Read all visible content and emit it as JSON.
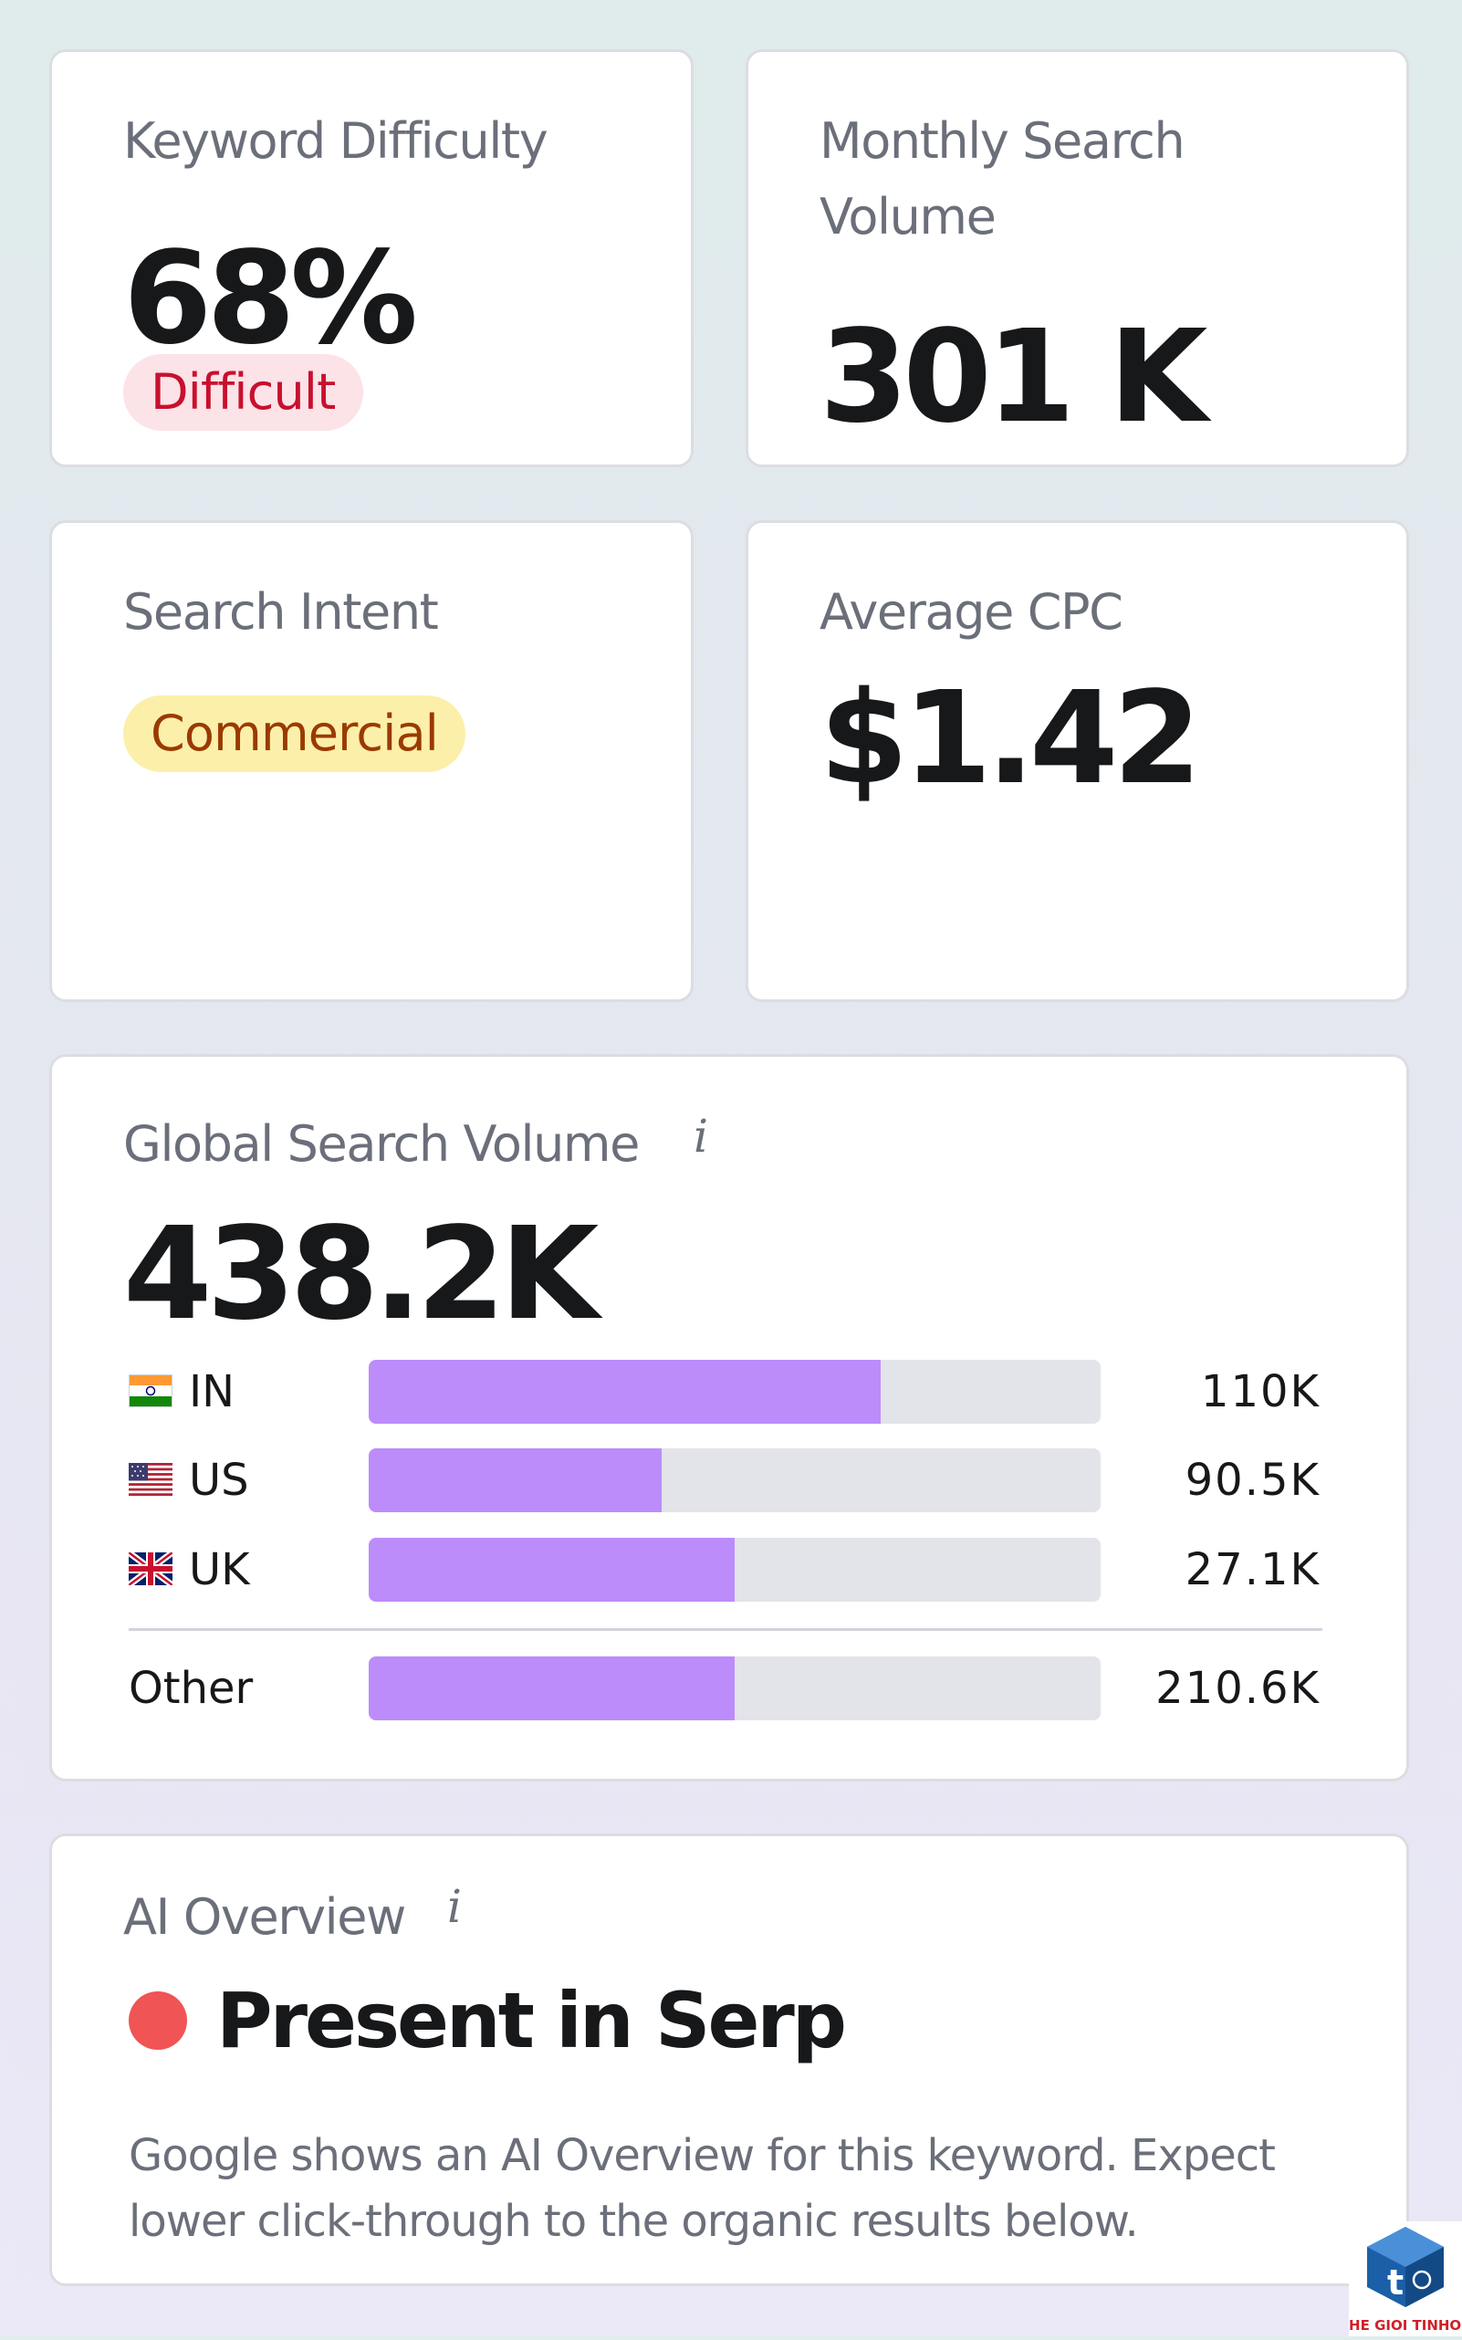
{
  "keyword_difficulty": {
    "label": "Keyword Difficulty",
    "value": "68%",
    "badge": "Difficult",
    "badge_color": "#c8102e"
  },
  "monthly_search_volume": {
    "label_line1": "Monthly Search",
    "label_line2": "Volume",
    "value": "301 K"
  },
  "search_intent": {
    "label": "Search Intent",
    "badge": "Commercial",
    "badge_color": "#9a3a00"
  },
  "average_cpc": {
    "label": "Average CPC",
    "value": "$1.42"
  },
  "global_search_volume": {
    "label": "Global Search Volume",
    "info_icon": "i",
    "value": "438.2K",
    "bar_color": "#bc8cfb",
    "rows": [
      {
        "flag": "india-flag-icon",
        "country": "IN",
        "value": "110K",
        "fill_percent": 70
      },
      {
        "flag": "usa-flag-icon",
        "country": "US",
        "value": "90.5K",
        "fill_percent": 40
      },
      {
        "flag": "uk-flag-icon",
        "country": "UK",
        "value": "27.1K",
        "fill_percent": 50
      }
    ],
    "other": {
      "country": "Other",
      "value": "210.6K",
      "fill_percent": 50
    }
  },
  "ai_overview": {
    "label": "AI Overview",
    "info_icon": "i",
    "status": "Present in Serp",
    "status_color": "#f05454",
    "description": "Google shows an AI Overview for this keyword. Expect lower click-through to the organic results below."
  },
  "watermark": {
    "logo_letter": "t",
    "text": "THE GIOI TINHOC"
  }
}
